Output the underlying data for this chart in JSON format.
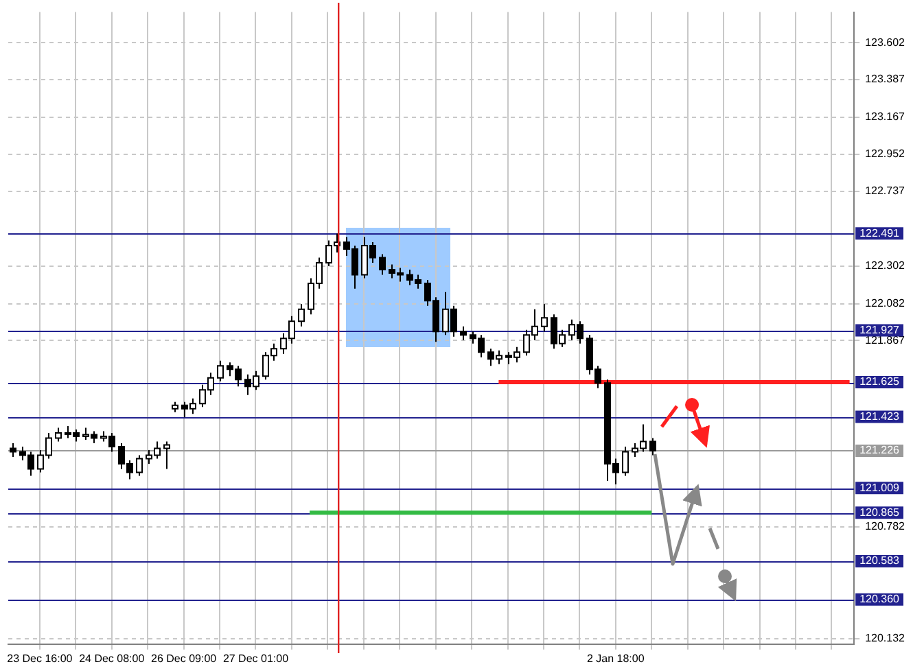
{
  "chart_data": {
    "type": "candlestick",
    "categories": [
      null,
      null,
      null,
      "23 Dec 16:00",
      null,
      null,
      null,
      null,
      null,
      null,
      null,
      "24 Dec 08:00",
      null,
      null,
      null,
      null,
      null,
      null,
      null,
      "26 Dec 09:00",
      null,
      null,
      null,
      null,
      null,
      null,
      null,
      "27 Dec 01:00",
      null,
      null,
      null,
      null,
      null,
      null,
      null,
      null,
      null,
      null,
      null,
      null,
      null,
      null,
      null,
      null,
      null,
      null,
      null,
      null,
      null,
      null,
      null,
      null,
      null,
      null,
      null,
      null,
      null,
      null,
      null,
      null,
      null,
      null,
      null,
      null,
      null,
      null,
      null,
      "2 Jan 18:00",
      null,
      null,
      null,
      null,
      null,
      null,
      null,
      null,
      null,
      null,
      null,
      null,
      null,
      null,
      null,
      null,
      null,
      null,
      null,
      null,
      null,
      null,
      null,
      null,
      null,
      null
    ],
    "ohlc": [
      [
        121.24,
        121.27,
        121.19,
        121.22
      ],
      [
        121.22,
        121.25,
        121.17,
        121.2
      ],
      [
        121.2,
        121.22,
        121.08,
        121.12
      ],
      [
        121.12,
        121.23,
        121.1,
        121.2
      ],
      [
        121.2,
        121.33,
        121.18,
        121.3
      ],
      [
        121.3,
        121.36,
        121.28,
        121.33
      ],
      [
        121.33,
        121.37,
        121.3,
        121.33
      ],
      [
        121.33,
        121.35,
        121.28,
        121.31
      ],
      [
        121.31,
        121.36,
        121.29,
        121.32
      ],
      [
        121.32,
        121.34,
        121.27,
        121.3
      ],
      [
        121.3,
        121.34,
        121.28,
        121.31
      ],
      [
        121.31,
        121.33,
        121.22,
        121.25
      ],
      [
        121.25,
        121.27,
        121.12,
        121.15
      ],
      [
        121.15,
        121.17,
        121.06,
        121.1
      ],
      [
        121.1,
        121.2,
        121.08,
        121.18
      ],
      [
        121.18,
        121.23,
        121.15,
        121.2
      ],
      [
        121.2,
        121.28,
        121.18,
        121.24
      ],
      [
        121.24,
        121.28,
        121.12,
        121.26
      ],
      [
        121.47,
        121.51,
        121.45,
        121.49
      ],
      [
        121.49,
        121.51,
        121.42,
        121.47
      ],
      [
        121.47,
        121.53,
        121.44,
        121.5
      ],
      [
        121.5,
        121.61,
        121.48,
        121.58
      ],
      [
        121.58,
        121.68,
        121.55,
        121.65
      ],
      [
        121.65,
        121.75,
        121.63,
        121.72
      ],
      [
        121.72,
        121.74,
        121.66,
        121.7
      ],
      [
        121.7,
        121.72,
        121.6,
        121.64
      ],
      [
        121.64,
        121.67,
        121.55,
        121.6
      ],
      [
        121.6,
        121.69,
        121.58,
        121.66
      ],
      [
        121.66,
        121.8,
        121.64,
        121.78
      ],
      [
        121.78,
        121.85,
        121.75,
        121.82
      ],
      [
        121.82,
        121.91,
        121.79,
        121.88
      ],
      [
        121.88,
        122.01,
        121.85,
        121.98
      ],
      [
        121.98,
        122.08,
        121.95,
        122.05
      ],
      [
        122.05,
        122.23,
        122.02,
        122.2
      ],
      [
        122.2,
        122.35,
        122.17,
        122.32
      ],
      [
        122.32,
        122.45,
        122.3,
        122.42
      ],
      [
        122.42,
        122.49,
        122.38,
        122.44
      ],
      [
        122.44,
        122.47,
        122.36,
        122.4
      ],
      [
        122.4,
        122.42,
        122.17,
        122.25
      ],
      [
        122.25,
        122.47,
        122.23,
        122.42
      ],
      [
        122.42,
        122.44,
        122.32,
        122.35
      ],
      [
        122.35,
        122.37,
        122.25,
        122.28
      ],
      [
        122.28,
        122.31,
        122.23,
        122.26
      ],
      [
        122.26,
        122.29,
        122.21,
        122.25
      ],
      [
        122.25,
        122.28,
        122.19,
        122.22
      ],
      [
        122.22,
        122.25,
        122.17,
        122.2
      ],
      [
        122.2,
        122.22,
        122.07,
        122.1
      ],
      [
        122.1,
        122.12,
        121.86,
        121.92
      ],
      [
        121.92,
        122.15,
        121.9,
        122.05
      ],
      [
        122.05,
        122.07,
        121.89,
        121.92
      ],
      [
        121.92,
        121.95,
        121.87,
        121.9
      ],
      [
        121.9,
        121.92,
        121.85,
        121.88
      ],
      [
        121.88,
        121.9,
        121.77,
        121.8
      ],
      [
        121.8,
        121.82,
        121.72,
        121.76
      ],
      [
        121.76,
        121.81,
        121.73,
        121.78
      ],
      [
        121.78,
        121.8,
        121.73,
        121.77
      ],
      [
        121.77,
        121.83,
        121.74,
        121.8
      ],
      [
        121.8,
        121.93,
        121.78,
        121.9
      ],
      [
        121.9,
        122.05,
        121.87,
        121.95
      ],
      [
        121.95,
        122.08,
        121.92,
        122
      ],
      [
        122,
        122.02,
        121.82,
        121.85
      ],
      [
        121.85,
        121.93,
        121.83,
        121.9
      ],
      [
        121.9,
        121.99,
        121.87,
        121.96
      ],
      [
        121.96,
        121.98,
        121.85,
        121.88
      ],
      [
        121.88,
        121.9,
        121.67,
        121.7
      ],
      [
        121.7,
        121.72,
        121.59,
        121.62
      ],
      [
        121.62,
        121.64,
        121.05,
        121.15
      ],
      [
        121.15,
        121.18,
        121.03,
        121.1
      ],
      [
        121.1,
        121.25,
        121.08,
        121.22
      ],
      [
        121.22,
        121.27,
        121.19,
        121.24
      ],
      [
        121.24,
        121.38,
        121.22,
        121.28
      ],
      [
        121.28,
        121.3,
        121.2,
        121.226
      ],
      null,
      null,
      null,
      null,
      null,
      null,
      null,
      null,
      null,
      null,
      null,
      null,
      null,
      null,
      null,
      null,
      null,
      null,
      null,
      null,
      null,
      null
    ],
    "series": [
      {
        "type": "line",
        "color": "#ff2020",
        "values": [
          null,
          null,
          null,
          null,
          null,
          null,
          null,
          null,
          null,
          null,
          null,
          null,
          null,
          null,
          null,
          null,
          null,
          null,
          null,
          null,
          null,
          null,
          null,
          null,
          null,
          null,
          null,
          null,
          null,
          null,
          null,
          null,
          null,
          null,
          null,
          null,
          null,
          null,
          null,
          null,
          null,
          null,
          null,
          null,
          null,
          null,
          null,
          null,
          null,
          null,
          null,
          null,
          null,
          null,
          121.625,
          121.625,
          121.625,
          121.625,
          121.625,
          121.625,
          121.625,
          121.625,
          121.625,
          121.625,
          121.625,
          121.625,
          121.625,
          121.625,
          121.625,
          121.625,
          121.625,
          121.625,
          121.625,
          121.625,
          121.625,
          121.625,
          121.625,
          121.625,
          121.625,
          121.625,
          121.625,
          121.625,
          121.625,
          121.625,
          121.625,
          121.625,
          121.625,
          121.625,
          121.625,
          121.625,
          121.625,
          121.625,
          121.625,
          121.625
        ]
      },
      {
        "type": "line",
        "color": "#33bb44",
        "values": [
          null,
          null,
          null,
          null,
          null,
          null,
          null,
          null,
          null,
          null,
          null,
          null,
          null,
          null,
          null,
          null,
          null,
          null,
          null,
          null,
          null,
          null,
          null,
          null,
          null,
          null,
          null,
          null,
          null,
          null,
          null,
          null,
          null,
          120.865,
          120.865,
          120.865,
          120.865,
          120.865,
          120.865,
          120.865,
          120.865,
          120.865,
          120.865,
          120.865,
          120.865,
          120.865,
          120.865,
          120.865,
          120.865,
          120.865,
          120.865,
          120.865,
          120.865,
          120.865,
          120.865,
          120.865,
          120.865,
          120.865,
          120.865,
          120.865,
          120.865,
          120.865,
          120.865,
          120.865,
          120.865,
          120.865,
          120.865,
          120.865,
          120.865,
          120.865,
          120.865,
          120.865,
          null,
          null,
          null,
          null,
          null,
          null,
          null,
          null,
          null,
          null,
          null,
          null,
          null,
          null,
          null,
          null,
          null,
          null,
          null,
          null,
          null,
          null
        ]
      }
    ],
    "ylim": [
      120.1,
      123.78
    ],
    "yticks": [
      123.602,
      123.387,
      123.167,
      122.952,
      122.737,
      122.302,
      122.082,
      121.867,
      120.782,
      120.132
    ],
    "ref_lines": [
      {
        "axis": "y",
        "value": 122.491,
        "label": "122.491",
        "color": "#22228f"
      },
      {
        "axis": "y",
        "value": 121.927,
        "label": "121.927",
        "color": "#22228f"
      },
      {
        "axis": "y",
        "value": 121.625,
        "label": "121.625",
        "color": "#22228f"
      },
      {
        "axis": "y",
        "value": 121.423,
        "label": "121.423",
        "color": "#22228f"
      },
      {
        "axis": "y",
        "value": 121.226,
        "label": "121.226",
        "color": "#9a9a9a"
      },
      {
        "axis": "y",
        "value": 121.009,
        "label": "121.009",
        "color": "#22228f"
      },
      {
        "axis": "y",
        "value": 120.865,
        "label": "120.865",
        "color": "#22228f"
      },
      {
        "axis": "y",
        "value": 120.583,
        "label": "120.583",
        "color": "#22228f"
      },
      {
        "axis": "y",
        "value": 120.36,
        "label": "120.360",
        "color": "#22228f"
      }
    ],
    "grid": true
  }
}
